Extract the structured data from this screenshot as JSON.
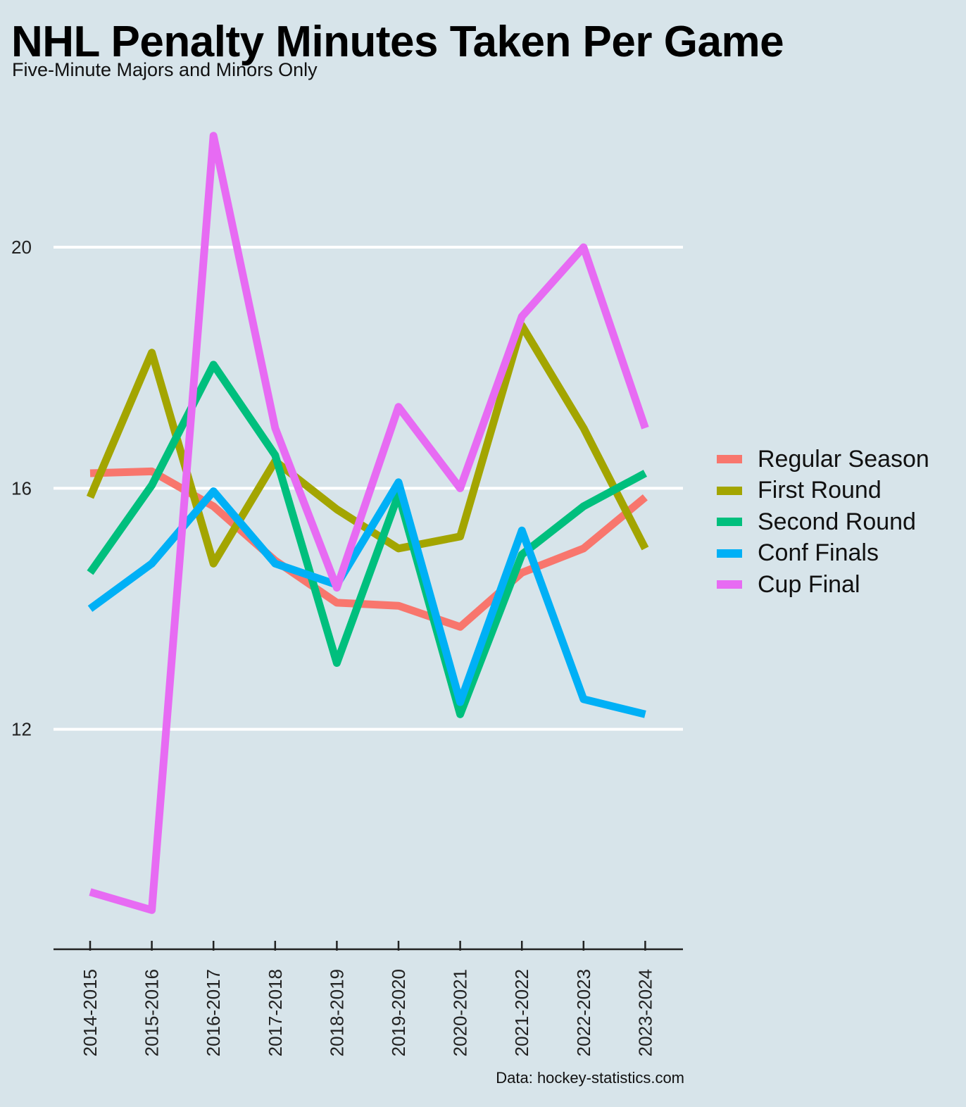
{
  "header": {
    "title": "NHL Penalty Minutes Taken Per Game",
    "subtitle": "Five-Minute Majors and Minors Only",
    "caption": "Data: hockey-statistics.com"
  },
  "chart_data": {
    "type": "line",
    "title": "NHL Penalty Minutes Taken Per Game",
    "subtitle": "Five-Minute Majors and Minors Only",
    "xlabel": "",
    "ylabel": "",
    "x": [
      "2014-2015",
      "2015-2016",
      "2016-2017",
      "2017-2018",
      "2018-2019",
      "2019-2020",
      "2020-2021",
      "2021-2022",
      "2022-2023",
      "2023-2024"
    ],
    "ylim": [
      8.35,
      22.7
    ],
    "yticks": [
      12,
      16,
      20
    ],
    "grid": "horizontal major only",
    "legend_position": "right",
    "series": [
      {
        "name": "Regular Season",
        "color": "#f8766d",
        "values": [
          16.25,
          16.28,
          15.7,
          14.8,
          14.1,
          14.05,
          13.7,
          14.6,
          15.0,
          15.85
        ]
      },
      {
        "name": "First Round",
        "color": "#a3a500",
        "values": [
          15.85,
          18.25,
          14.75,
          16.45,
          15.65,
          15.0,
          15.2,
          18.7,
          17.0,
          15.0
        ]
      },
      {
        "name": "Second Round",
        "color": "#00bf7d",
        "values": [
          14.6,
          16.05,
          18.05,
          16.55,
          13.1,
          15.9,
          12.25,
          14.9,
          15.7,
          16.25
        ]
      },
      {
        "name": "Conf Finals",
        "color": "#00b0f6",
        "values": [
          14.0,
          14.75,
          15.95,
          14.75,
          14.4,
          16.1,
          12.45,
          15.3,
          12.5,
          12.25
        ]
      },
      {
        "name": "Cup Final",
        "color": "#e76bf3",
        "values": [
          9.3,
          9.0,
          21.85,
          17.0,
          14.35,
          17.35,
          16.0,
          18.85,
          20.0,
          17.0
        ]
      }
    ]
  }
}
